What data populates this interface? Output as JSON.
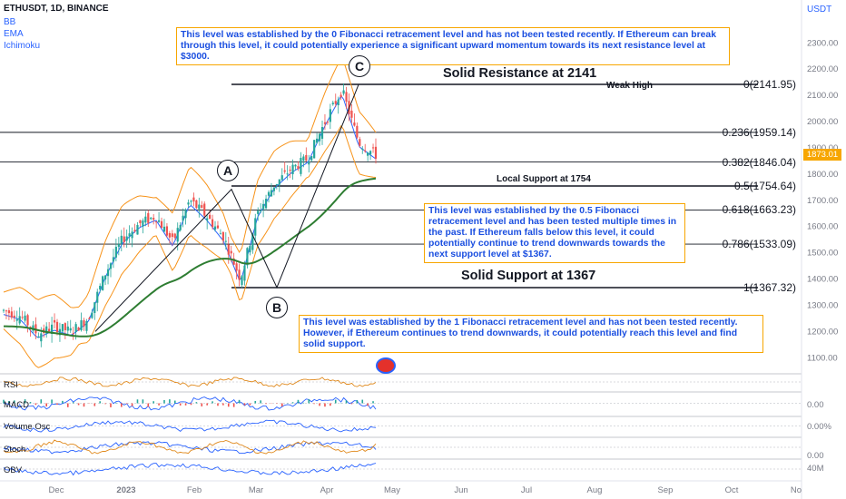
{
  "header": {
    "symbol": "ETHUSDT, 1D, BINANCE",
    "indicators": [
      "BB",
      "EMA",
      "Ichimoku"
    ]
  },
  "currency": "USDT",
  "last_price": "1873.01",
  "annotations": {
    "resistance_title": "Solid Resistance at 2141",
    "weak_high": "Weak High",
    "local_support": "Local Support at 1754",
    "support_title": "Solid Support at 1367",
    "note_top": "This level was established by the 0 Fibonacci retracement level and has not been tested recently. If Ethereum can break through this level, it could potentially experience a significant upward momentum towards its next resistance level at $3000.",
    "note_mid": "This level was established by the 0.5 Fibonacci retracement level and has been tested multiple times in the past. If Ethereum falls below this level, it could potentially continue to trend downwards towards the next support level at $1367.",
    "note_bottom": "This level was established by the 1 Fibonacci retracement level and has not been tested recently. However, if Ethereum continues to trend downwards, it could potentially reach this level and find solid support."
  },
  "pivots": [
    "A",
    "B",
    "C"
  ],
  "fib_levels": [
    {
      "label": "0(2141.95)",
      "price": 2141.95
    },
    {
      "label": "0.236(1959.14)",
      "price": 1959.14
    },
    {
      "label": "0.382(1846.04)",
      "price": 1846.04
    },
    {
      "label": "0.5(1754.64)",
      "price": 1754.64
    },
    {
      "label": "0.618(1663.23)",
      "price": 1663.23
    },
    {
      "label": "0.786(1533.09)",
      "price": 1533.09
    },
    {
      "label": "1(1367.32)",
      "price": 1367.32
    }
  ],
  "indicator_panes": [
    {
      "name": "RSI",
      "value": ""
    },
    {
      "name": "MACD",
      "value": "0.00"
    },
    {
      "name": "Volume Osc",
      "value": "0.00%"
    },
    {
      "name": "Stoch",
      "value": "0.00"
    },
    {
      "name": "OBV",
      "value": "40M"
    }
  ],
  "colors": {
    "bullish": "#26a69a",
    "bearish": "#ef5350",
    "bollinger": "#f7931a",
    "ema": "#2e7d32",
    "basis": "#2962ff",
    "note_text": "#1b4fe0",
    "note_border": "#f7a600"
  },
  "chart_data": {
    "type": "line",
    "title": "ETHUSDT, 1D, BINANCE",
    "x_ticks": [
      "Dec",
      "2023",
      "Feb",
      "Mar",
      "Apr",
      "May",
      "Jun",
      "Jul",
      "Aug",
      "Sep",
      "Oct",
      "No"
    ],
    "y_ticks": [
      2300,
      2200,
      2100,
      2000,
      1900,
      1800,
      1700,
      1600,
      1500,
      1400,
      1300,
      1200,
      1100
    ],
    "ylim": [
      1050,
      2350
    ],
    "series": [
      {
        "name": "ETHUSDT",
        "x": [
          "Dec 1",
          "Dec 8",
          "Dec 15",
          "Dec 22",
          "Dec 29",
          "Jan 5",
          "Jan 12",
          "Jan 19",
          "Jan 26",
          "Feb 2",
          "Feb 9",
          "Feb 16",
          "Feb 23",
          "Mar 2",
          "Mar 9",
          "Mar 16",
          "Mar 23",
          "Mar 30",
          "Apr 6",
          "Apr 13",
          "Apr 16",
          "Apr 20",
          "Apr 24"
        ],
        "values": [
          1280,
          1260,
          1190,
          1220,
          1200,
          1250,
          1420,
          1550,
          1610,
          1640,
          1540,
          1700,
          1640,
          1560,
          1400,
          1650,
          1760,
          1820,
          1860,
          2000,
          2120,
          1920,
          1873
        ]
      }
    ],
    "swing_points": [
      {
        "label": "A",
        "x": "Feb 18",
        "y": 1742
      },
      {
        "label": "B",
        "x": "Mar 10",
        "y": 1368
      },
      {
        "label": "C",
        "x": "Apr 16",
        "y": 2141
      }
    ],
    "ylabel": "USDT",
    "grid": false
  }
}
